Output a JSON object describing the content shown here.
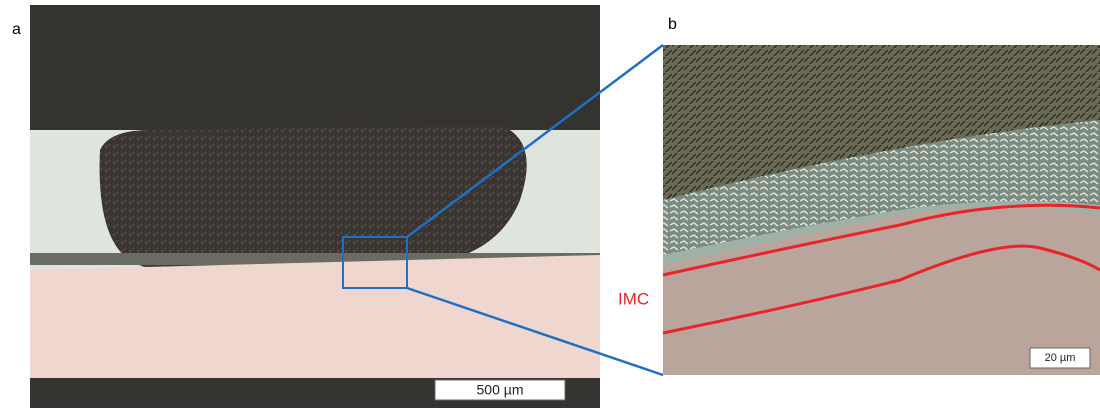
{
  "panels": [
    {
      "label": "a",
      "scale_bar": "500 µm"
    },
    {
      "label": "b",
      "scale_bar": "20 µm",
      "annotation": "IMC"
    }
  ]
}
